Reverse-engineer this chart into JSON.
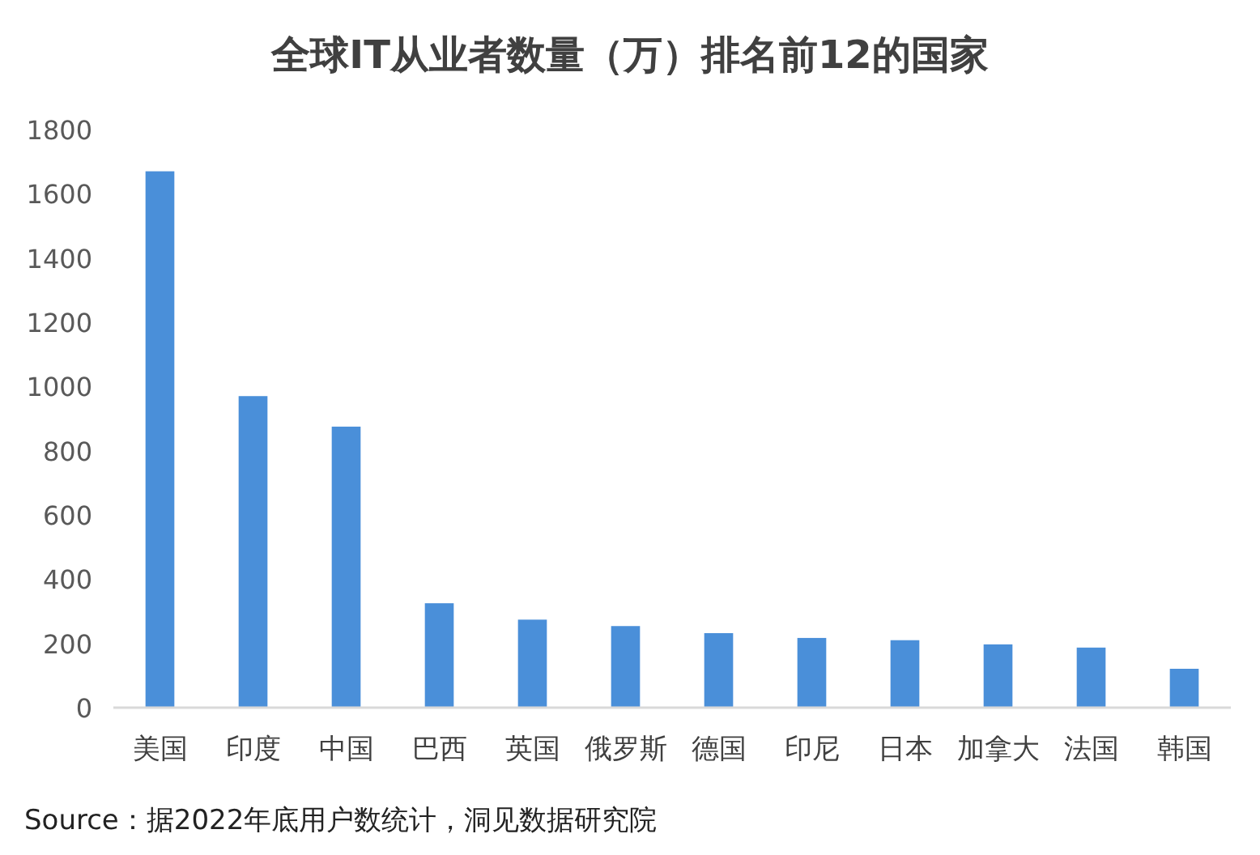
{
  "chart_data": {
    "type": "bar",
    "title": "全球IT从业者数量（万）排名前12的国家",
    "categories": [
      "美国",
      "印度",
      "中国",
      "巴西",
      "英国",
      "俄罗斯",
      "德国",
      "印尼",
      "日本",
      "加拿大",
      "法国",
      "韩国"
    ],
    "values": [
      1670,
      970,
      875,
      325,
      274,
      254,
      232,
      217,
      210,
      197,
      187,
      121
    ],
    "color": "#4a8fd9",
    "ylim": [
      0,
      1800
    ],
    "yticks": [
      0,
      200,
      400,
      600,
      800,
      1000,
      1200,
      1400,
      1600,
      1800
    ],
    "annotations": [
      "Source：据2022年底用户数统计，洞见数据研究院"
    ]
  }
}
